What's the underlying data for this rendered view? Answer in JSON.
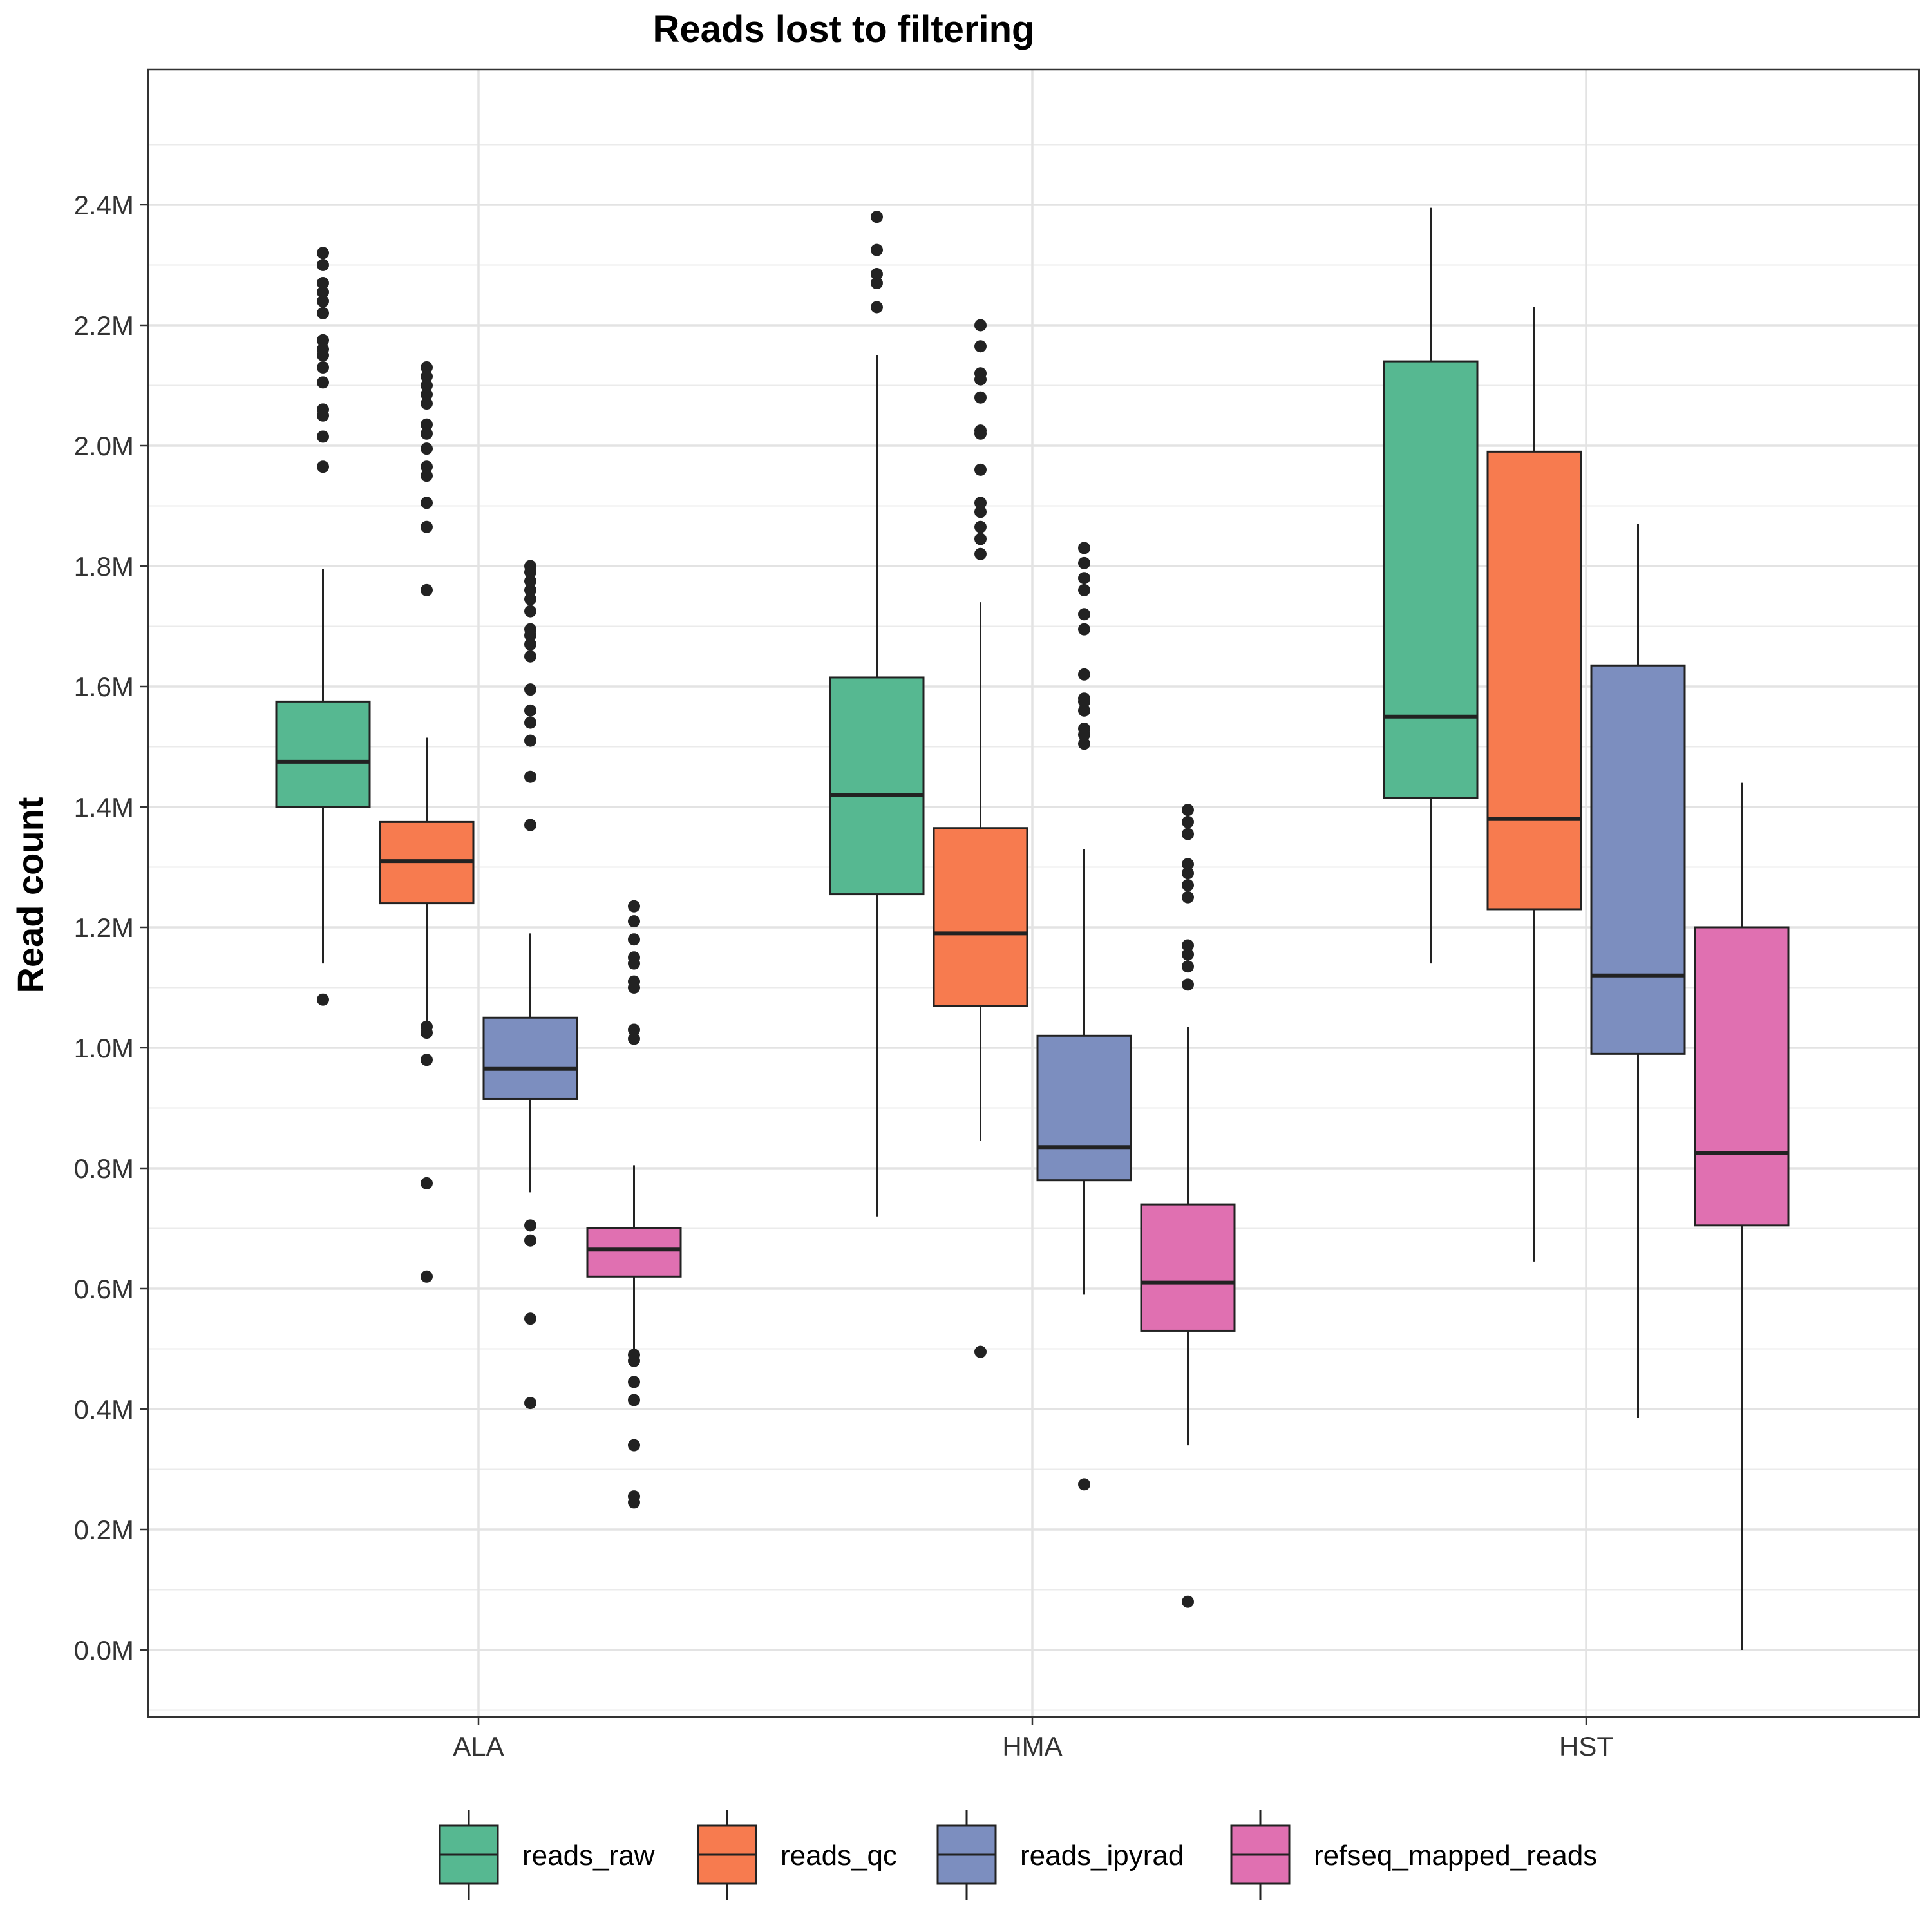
{
  "chart_data": {
    "type": "boxplot",
    "title": "Reads lost to filtering",
    "xlabel": "",
    "ylabel": "Read count",
    "categories": [
      "ALA",
      "HMA",
      "HST"
    ],
    "ylim": [
      -0.1,
      2.65
    ],
    "yticks": [
      0.0,
      0.2,
      0.4,
      0.6,
      0.8,
      1.0,
      1.2,
      1.4,
      1.6,
      1.8,
      2.0,
      2.2,
      2.4
    ],
    "ytick_labels": [
      "0.0M",
      "0.2M",
      "0.4M",
      "0.6M",
      "0.8M",
      "1.0M",
      "1.2M",
      "1.4M",
      "1.6M",
      "1.8M",
      "2.0M",
      "2.2M",
      "2.4M"
    ],
    "y_unit": "millions of reads",
    "grid": true,
    "legend_position": "bottom",
    "series": [
      {
        "name": "reads_raw",
        "color": "#56b891",
        "boxes": [
          {
            "category": "ALA",
            "whisker_low": 1.14,
            "q1": 1.4,
            "median": 1.475,
            "q3": 1.575,
            "whisker_high": 1.795,
            "outliers": [
              1.08,
              1.965,
              2.015,
              2.05,
              2.06,
              2.105,
              2.13,
              2.15,
              2.16,
              2.175,
              2.22,
              2.24,
              2.255,
              2.27,
              2.3,
              2.32
            ]
          },
          {
            "category": "HMA",
            "whisker_low": 0.72,
            "q1": 1.255,
            "median": 1.42,
            "q3": 1.615,
            "whisker_high": 2.15,
            "outliers": [
              2.23,
              2.27,
              2.285,
              2.325,
              2.38
            ]
          },
          {
            "category": "HST",
            "whisker_low": 1.14,
            "q1": 1.415,
            "median": 1.55,
            "q3": 2.14,
            "whisker_high": 2.395,
            "outliers": []
          }
        ]
      },
      {
        "name": "reads_qc",
        "color": "#f77b4f",
        "boxes": [
          {
            "category": "ALA",
            "whisker_low": 1.035,
            "q1": 1.24,
            "median": 1.31,
            "q3": 1.375,
            "whisker_high": 1.515,
            "outliers": [
              0.62,
              0.775,
              0.98,
              1.025,
              1.035,
              1.76,
              1.865,
              1.905,
              1.95,
              1.965,
              1.995,
              2.02,
              2.035,
              2.07,
              2.085,
              2.1,
              2.115,
              2.13
            ]
          },
          {
            "category": "HMA",
            "whisker_low": 0.845,
            "q1": 1.07,
            "median": 1.19,
            "q3": 1.365,
            "whisker_high": 1.74,
            "outliers": [
              0.495,
              1.82,
              1.845,
              1.865,
              1.89,
              1.905,
              1.96,
              2.02,
              2.025,
              2.08,
              2.11,
              2.12,
              2.165,
              2.2
            ]
          },
          {
            "category": "HST",
            "whisker_low": 0.645,
            "q1": 1.23,
            "median": 1.38,
            "q3": 1.99,
            "whisker_high": 2.23,
            "outliers": []
          }
        ]
      },
      {
        "name": "reads_ipyrad",
        "color": "#7c8ebf",
        "boxes": [
          {
            "category": "ALA",
            "whisker_low": 0.76,
            "q1": 0.915,
            "median": 0.965,
            "q3": 1.05,
            "whisker_high": 1.19,
            "outliers": [
              0.41,
              0.55,
              0.68,
              0.705,
              1.37,
              1.45,
              1.51,
              1.54,
              1.56,
              1.595,
              1.65,
              1.67,
              1.685,
              1.695,
              1.725,
              1.745,
              1.76,
              1.775,
              1.79,
              1.8
            ]
          },
          {
            "category": "HMA",
            "whisker_low": 0.59,
            "q1": 0.78,
            "median": 0.835,
            "q3": 1.02,
            "whisker_high": 1.33,
            "outliers": [
              0.275,
              1.505,
              1.52,
              1.53,
              1.56,
              1.575,
              1.58,
              1.62,
              1.695,
              1.72,
              1.76,
              1.78,
              1.805,
              1.83
            ]
          },
          {
            "category": "HST",
            "whisker_low": 0.385,
            "q1": 0.99,
            "median": 1.12,
            "q3": 1.635,
            "whisker_high": 1.87,
            "outliers": []
          }
        ]
      },
      {
        "name": "refseq_mapped_reads",
        "color": "#e070b1",
        "boxes": [
          {
            "category": "ALA",
            "whisker_low": 0.5,
            "q1": 0.62,
            "median": 0.665,
            "q3": 0.7,
            "whisker_high": 0.805,
            "outliers": [
              0.245,
              0.255,
              0.34,
              0.415,
              0.445,
              0.48,
              0.49,
              1.015,
              1.03,
              1.1,
              1.11,
              1.14,
              1.15,
              1.18,
              1.21,
              1.235
            ]
          },
          {
            "category": "HMA",
            "whisker_low": 0.34,
            "q1": 0.53,
            "median": 0.61,
            "q3": 0.74,
            "whisker_high": 1.035,
            "outliers": [
              0.08,
              1.105,
              1.135,
              1.155,
              1.17,
              1.25,
              1.27,
              1.29,
              1.305,
              1.355,
              1.375,
              1.395
            ]
          },
          {
            "category": "HST",
            "whisker_low": 0.0,
            "q1": 0.705,
            "median": 0.825,
            "q3": 1.2,
            "whisker_high": 1.44,
            "outliers": []
          }
        ]
      }
    ]
  }
}
